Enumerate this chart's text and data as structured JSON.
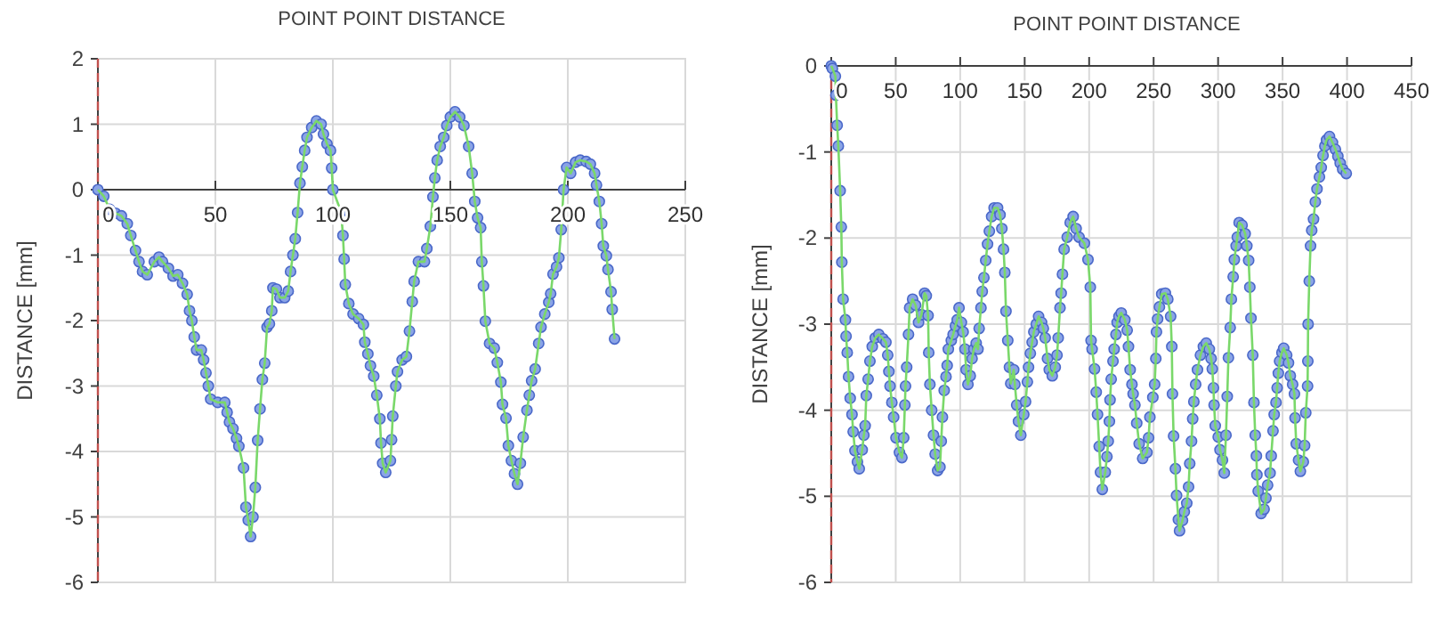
{
  "chart_data": [
    {
      "type": "line",
      "title": "POINT POINT DISTANCE",
      "ylabel": "DISTANCE [mm]",
      "xlim": [
        0,
        250
      ],
      "xticks": [
        0,
        50,
        100,
        150,
        200,
        250
      ],
      "ylim": [
        -6,
        2
      ],
      "yticks": [
        -6,
        -5,
        -4,
        -3,
        -2,
        -1,
        0,
        1,
        2
      ],
      "grid": true,
      "marker": "circle",
      "line_style": "solid",
      "ref_lines": [
        {
          "axis": "x",
          "value": 0,
          "color": "#c0504d",
          "line_style": "dashed"
        }
      ],
      "series": [
        {
          "color": "#8aa4e6",
          "x": [
            0,
            2.5,
            5,
            7.5,
            10,
            12.5,
            14,
            16,
            17.5,
            19,
            21,
            24,
            26,
            27.5,
            30,
            32,
            34,
            36,
            38,
            39,
            40,
            41,
            42,
            44,
            45,
            46,
            47,
            48,
            51,
            54,
            55,
            56,
            57.5,
            59,
            60,
            62,
            63,
            64,
            65,
            66,
            67,
            68,
            69,
            70,
            71,
            72,
            73,
            74,
            74.5,
            76,
            77.5,
            79.5,
            81,
            82,
            83,
            84,
            85,
            86,
            87,
            88,
            89,
            91,
            93,
            95,
            96,
            97.5,
            99,
            99.5,
            100,
            103.5,
            104.3,
            104.8,
            105.3,
            106.8,
            108.6,
            111,
            113,
            113.6,
            114.9,
            116,
            117.4,
            118.7,
            120,
            120.5,
            121.2,
            122.5,
            124.5,
            125,
            125.5,
            126.8,
            127.5,
            129.5,
            131.3,
            132.6,
            133.8,
            134.6,
            136.4,
            139,
            140,
            141.5,
            142.6,
            143.4,
            144.4,
            145.7,
            147.2,
            148.5,
            150,
            152,
            154,
            155.8,
            157.8,
            159.3,
            160.4,
            161.6,
            162.9,
            163.4,
            164.1,
            164.9,
            166.7,
            168.7,
            170,
            171.5,
            172.2,
            173.7,
            174.7,
            176,
            177.3,
            178.6,
            179.8,
            181,
            182.6,
            183.6,
            184.6,
            186.1,
            187.6,
            188.6,
            190.2,
            191.9,
            192.7,
            193.7,
            195.2,
            196.2,
            197.2,
            198.2,
            199.5,
            201.2,
            203.3,
            205.3,
            207.8,
            209.6,
            211.4,
            212.2,
            213.4,
            214.4,
            215.1,
            216.4,
            217.1,
            218.4,
            218.9,
            219.9
          ],
          "values": [
            0,
            -0.1,
            -0.3,
            -0.36,
            -0.4,
            -0.52,
            -0.7,
            -0.93,
            -1.1,
            -1.25,
            -1.3,
            -1.1,
            -1.03,
            -1.1,
            -1.2,
            -1.32,
            -1.3,
            -1.43,
            -1.6,
            -1.85,
            -2.0,
            -2.25,
            -2.45,
            -2.45,
            -2.6,
            -2.8,
            -3.0,
            -3.2,
            -3.25,
            -3.25,
            -3.4,
            -3.55,
            -3.65,
            -3.8,
            -3.92,
            -4.25,
            -4.85,
            -5.05,
            -5.3,
            -5.0,
            -4.55,
            -3.83,
            -3.35,
            -2.9,
            -2.65,
            -2.1,
            -2.05,
            -1.85,
            -1.5,
            -1.52,
            -1.65,
            -1.65,
            -1.55,
            -1.25,
            -1.0,
            -0.75,
            -0.35,
            0.1,
            0.35,
            0.6,
            0.8,
            0.95,
            1.05,
            1.0,
            0.85,
            0.7,
            0.6,
            0.33,
            0,
            -0.34,
            -0.7,
            -1.06,
            -1.45,
            -1.74,
            -1.9,
            -1.97,
            -2.06,
            -2.33,
            -2.51,
            -2.69,
            -2.85,
            -3.14,
            -3.5,
            -3.87,
            -4.18,
            -4.32,
            -4.14,
            -3.82,
            -3.46,
            -3.0,
            -2.78,
            -2.6,
            -2.55,
            -2.16,
            -1.71,
            -1.4,
            -1.1,
            -1.1,
            -0.9,
            -0.56,
            -0.11,
            0.18,
            0.45,
            0.66,
            0.8,
            0.98,
            1.11,
            1.19,
            1.11,
            0.98,
            0.66,
            0.25,
            -0.18,
            -0.43,
            -0.58,
            -1.1,
            -1.47,
            -2.01,
            -2.35,
            -2.42,
            -2.64,
            -2.94,
            -3.28,
            -3.49,
            -3.91,
            -4.14,
            -4.34,
            -4.5,
            -4.18,
            -3.78,
            -3.37,
            -3.14,
            -2.92,
            -2.74,
            -2.35,
            -2.1,
            -1.9,
            -1.72,
            -1.59,
            -1.29,
            -1.18,
            -1.04,
            -0.61,
            0,
            0.34,
            0.25,
            0.42,
            0.45,
            0.43,
            0.39,
            0.25,
            0.07,
            -0.18,
            -0.52,
            -0.86,
            -1.01,
            -1.22,
            -1.56,
            -1.83,
            -2.28
          ]
        }
      ]
    },
    {
      "type": "line",
      "title": "POINT POINT DISTANCE",
      "ylabel": "DISTANCE [mm]",
      "xlim": [
        0,
        450
      ],
      "xticks": [
        0,
        50,
        100,
        150,
        200,
        250,
        300,
        350,
        400,
        450
      ],
      "ylim": [
        -6,
        0
      ],
      "yticks": [
        -6,
        -5,
        -4,
        -3,
        -2,
        -1,
        0
      ],
      "grid": true,
      "marker": "circle",
      "line_style": "solid",
      "ref_lines": [
        {
          "axis": "x",
          "value": 0,
          "color": "#c0504d",
          "line_style": "dashed"
        }
      ],
      "series": [
        {
          "color": "#8aa4e6",
          "x": [
            0,
            0.9,
            3.2,
            3.6,
            4.6,
            5.5,
            6.9,
            7.8,
            8.2,
            9.2,
            11,
            11.5,
            12.4,
            13.4,
            14.7,
            16.1,
            17,
            18.4,
            20.3,
            21.7,
            24,
            25.3,
            26.3,
            27.2,
            28.6,
            30,
            31.8,
            34.1,
            36.9,
            40.1,
            42.4,
            43.8,
            44.7,
            45.6,
            47,
            48.4,
            50.2,
            52.9,
            54.8,
            56.2,
            57.1,
            57.6,
            58.5,
            59.9,
            60.8,
            63.1,
            65.4,
            67.7,
            70,
            72.4,
            73.7,
            75.1,
            75.6,
            76.5,
            77.9,
            79.3,
            80.6,
            82.5,
            84.3,
            85.3,
            86.2,
            87.6,
            89,
            89.9,
            90.8,
            93.1,
            94.5,
            96.3,
            97.7,
            99.1,
            100.9,
            102.3,
            103.7,
            104.6,
            106,
            107.8,
            109.2,
            110.6,
            112.4,
            113.8,
            114.7,
            116.1,
            117.1,
            118.4,
            119.8,
            121.2,
            122.6,
            124.4,
            126.3,
            129,
            130.9,
            132.3,
            133.6,
            134.6,
            135.5,
            136.9,
            138.2,
            139.2,
            141.5,
            142.4,
            143.8,
            145.2,
            147,
            149.3,
            150.7,
            152.1,
            153,
            154.4,
            155.8,
            157.1,
            159,
            160.8,
            163.1,
            164.5,
            165.9,
            167.7,
            169.1,
            171.4,
            173.7,
            175.1,
            176,
            177.4,
            178.3,
            179.3,
            180.6,
            183,
            185.3,
            187.6,
            189.9,
            192.2,
            196.3,
            199.1,
            200.9,
            201.5,
            202.3,
            204.2,
            205.5,
            206.5,
            207.8,
            208.8,
            210.2,
            212.5,
            213.8,
            214.8,
            215.7,
            216.2,
            217.1,
            218.5,
            219.4,
            220.8,
            221.7,
            223.1,
            224.9,
            227.7,
            229.5,
            230.5,
            231.8,
            233.2,
            234.1,
            235.5,
            236.9,
            238.8,
            241.5,
            244.8,
            246.1,
            247.1,
            249.4,
            250.8,
            251.7,
            252.2,
            253.1,
            254.5,
            256.3,
            259.1,
            261,
            263.2,
            264.1,
            264.6,
            265.5,
            266.9,
            267.8,
            269.2,
            270.1,
            272.4,
            273.8,
            275.7,
            277.1,
            278,
            279.4,
            280.3,
            281.2,
            282.6,
            284,
            286.3,
            288.6,
            290.8,
            293.2,
            294.6,
            295.5,
            296.4,
            296.9,
            297.8,
            300.1,
            301.5,
            303.4,
            304.8,
            306.1,
            307.1,
            308,
            309.4,
            310.3,
            311.7,
            312.6,
            314,
            314.9,
            316.3,
            318.6,
            321,
            322.3,
            323.7,
            324.6,
            325.5,
            326.9,
            327.8,
            328.8,
            329.7,
            330.1,
            331.1,
            333.4,
            335.7,
            337.1,
            338.4,
            340.3,
            341.2,
            342.6,
            343.5,
            344.9,
            345.8,
            346.7,
            347.7,
            349.5,
            350.9,
            353.2,
            354.6,
            356,
            357.8,
            359.2,
            359.7,
            360.6,
            362.4,
            363.8,
            366.1,
            367.1,
            368,
            369.4,
            369.6,
            369.8,
            370.7,
            371.7,
            372.6,
            374,
            375.4,
            376.7,
            378.6,
            380,
            381.4,
            382.8,
            384.1,
            386.4,
            388.7,
            391,
            392.9,
            394.7,
            396.6,
            399.4
          ],
          "values": [
            0,
            -0.03,
            -0.12,
            -0.34,
            -0.69,
            -0.93,
            -1.45,
            -1.87,
            -2.28,
            -2.71,
            -2.95,
            -3.14,
            -3.33,
            -3.61,
            -3.86,
            -4.05,
            -4.25,
            -4.47,
            -4.6,
            -4.68,
            -4.46,
            -4.29,
            -4.18,
            -3.83,
            -3.64,
            -3.43,
            -3.26,
            -3.16,
            -3.12,
            -3.17,
            -3.21,
            -3.36,
            -3.55,
            -3.72,
            -3.91,
            -4.08,
            -4.32,
            -4.49,
            -4.55,
            -4.32,
            -3.94,
            -3.72,
            -3.5,
            -3.12,
            -2.81,
            -2.71,
            -2.78,
            -2.98,
            -2.89,
            -2.64,
            -2.67,
            -2.9,
            -3.33,
            -3.7,
            -4.0,
            -4.29,
            -4.51,
            -4.7,
            -4.66,
            -4.36,
            -4.08,
            -3.77,
            -3.61,
            -3.48,
            -3.29,
            -3.19,
            -3.12,
            -3.02,
            -2.95,
            -2.81,
            -2.98,
            -3.09,
            -3.29,
            -3.53,
            -3.7,
            -3.6,
            -3.4,
            -3.29,
            -3.22,
            -3.29,
            -3.05,
            -2.81,
            -2.62,
            -2.46,
            -2.26,
            -2.07,
            -1.92,
            -1.75,
            -1.65,
            -1.65,
            -1.73,
            -1.89,
            -2.13,
            -2.4,
            -2.85,
            -3.19,
            -3.5,
            -3.69,
            -3.53,
            -3.7,
            -3.94,
            -4.13,
            -4.29,
            -4.05,
            -3.9,
            -3.67,
            -3.5,
            -3.34,
            -3.21,
            -3.09,
            -3.0,
            -2.91,
            -2.98,
            -3.05,
            -3.16,
            -3.4,
            -3.53,
            -3.6,
            -3.5,
            -3.36,
            -3.16,
            -2.81,
            -2.64,
            -2.42,
            -2.13,
            -1.99,
            -1.82,
            -1.75,
            -1.89,
            -1.99,
            -2.06,
            -2.25,
            -2.57,
            -3.19,
            -3.29,
            -3.52,
            -3.79,
            -4.05,
            -4.42,
            -4.72,
            -4.92,
            -4.72,
            -4.54,
            -4.36,
            -4.13,
            -3.88,
            -3.64,
            -3.43,
            -3.29,
            -3.12,
            -2.98,
            -2.91,
            -2.87,
            -2.95,
            -3.07,
            -3.26,
            -3.53,
            -3.7,
            -3.81,
            -3.94,
            -4.15,
            -4.39,
            -4.56,
            -4.49,
            -4.32,
            -4.08,
            -3.85,
            -3.7,
            -3.4,
            -3.09,
            -2.94,
            -2.8,
            -2.65,
            -2.64,
            -2.71,
            -2.91,
            -3.26,
            -3.81,
            -4.3,
            -4.68,
            -4.99,
            -5.27,
            -5.4,
            -5.28,
            -5.18,
            -5.08,
            -4.89,
            -4.62,
            -4.36,
            -4.1,
            -3.9,
            -3.7,
            -3.53,
            -3.36,
            -3.26,
            -3.22,
            -3.29,
            -3.4,
            -3.52,
            -3.74,
            -3.94,
            -4.18,
            -4.31,
            -4.46,
            -4.58,
            -4.73,
            -4.29,
            -3.84,
            -3.39,
            -3.04,
            -2.71,
            -2.45,
            -2.25,
            -2.09,
            -1.99,
            -1.82,
            -1.85,
            -1.95,
            -2.09,
            -2.26,
            -2.57,
            -2.93,
            -3.36,
            -3.91,
            -4.29,
            -4.53,
            -4.75,
            -4.94,
            -5.2,
            -5.15,
            -5.02,
            -4.87,
            -4.73,
            -4.53,
            -4.24,
            -4.05,
            -3.91,
            -3.74,
            -3.57,
            -3.43,
            -3.33,
            -3.28,
            -3.36,
            -3.45,
            -3.6,
            -3.7,
            -3.81,
            -4.09,
            -4.39,
            -4.58,
            -4.71,
            -4.6,
            -4.41,
            -4.03,
            -3.72,
            -3.43,
            -3.0,
            -2.5,
            -2.09,
            -1.91,
            -1.78,
            -1.58,
            -1.43,
            -1.29,
            -1.18,
            -1.04,
            -0.93,
            -0.86,
            -0.82,
            -0.89,
            -0.97,
            -1.05,
            -1.13,
            -1.2,
            -1.25
          ]
        }
      ]
    }
  ]
}
